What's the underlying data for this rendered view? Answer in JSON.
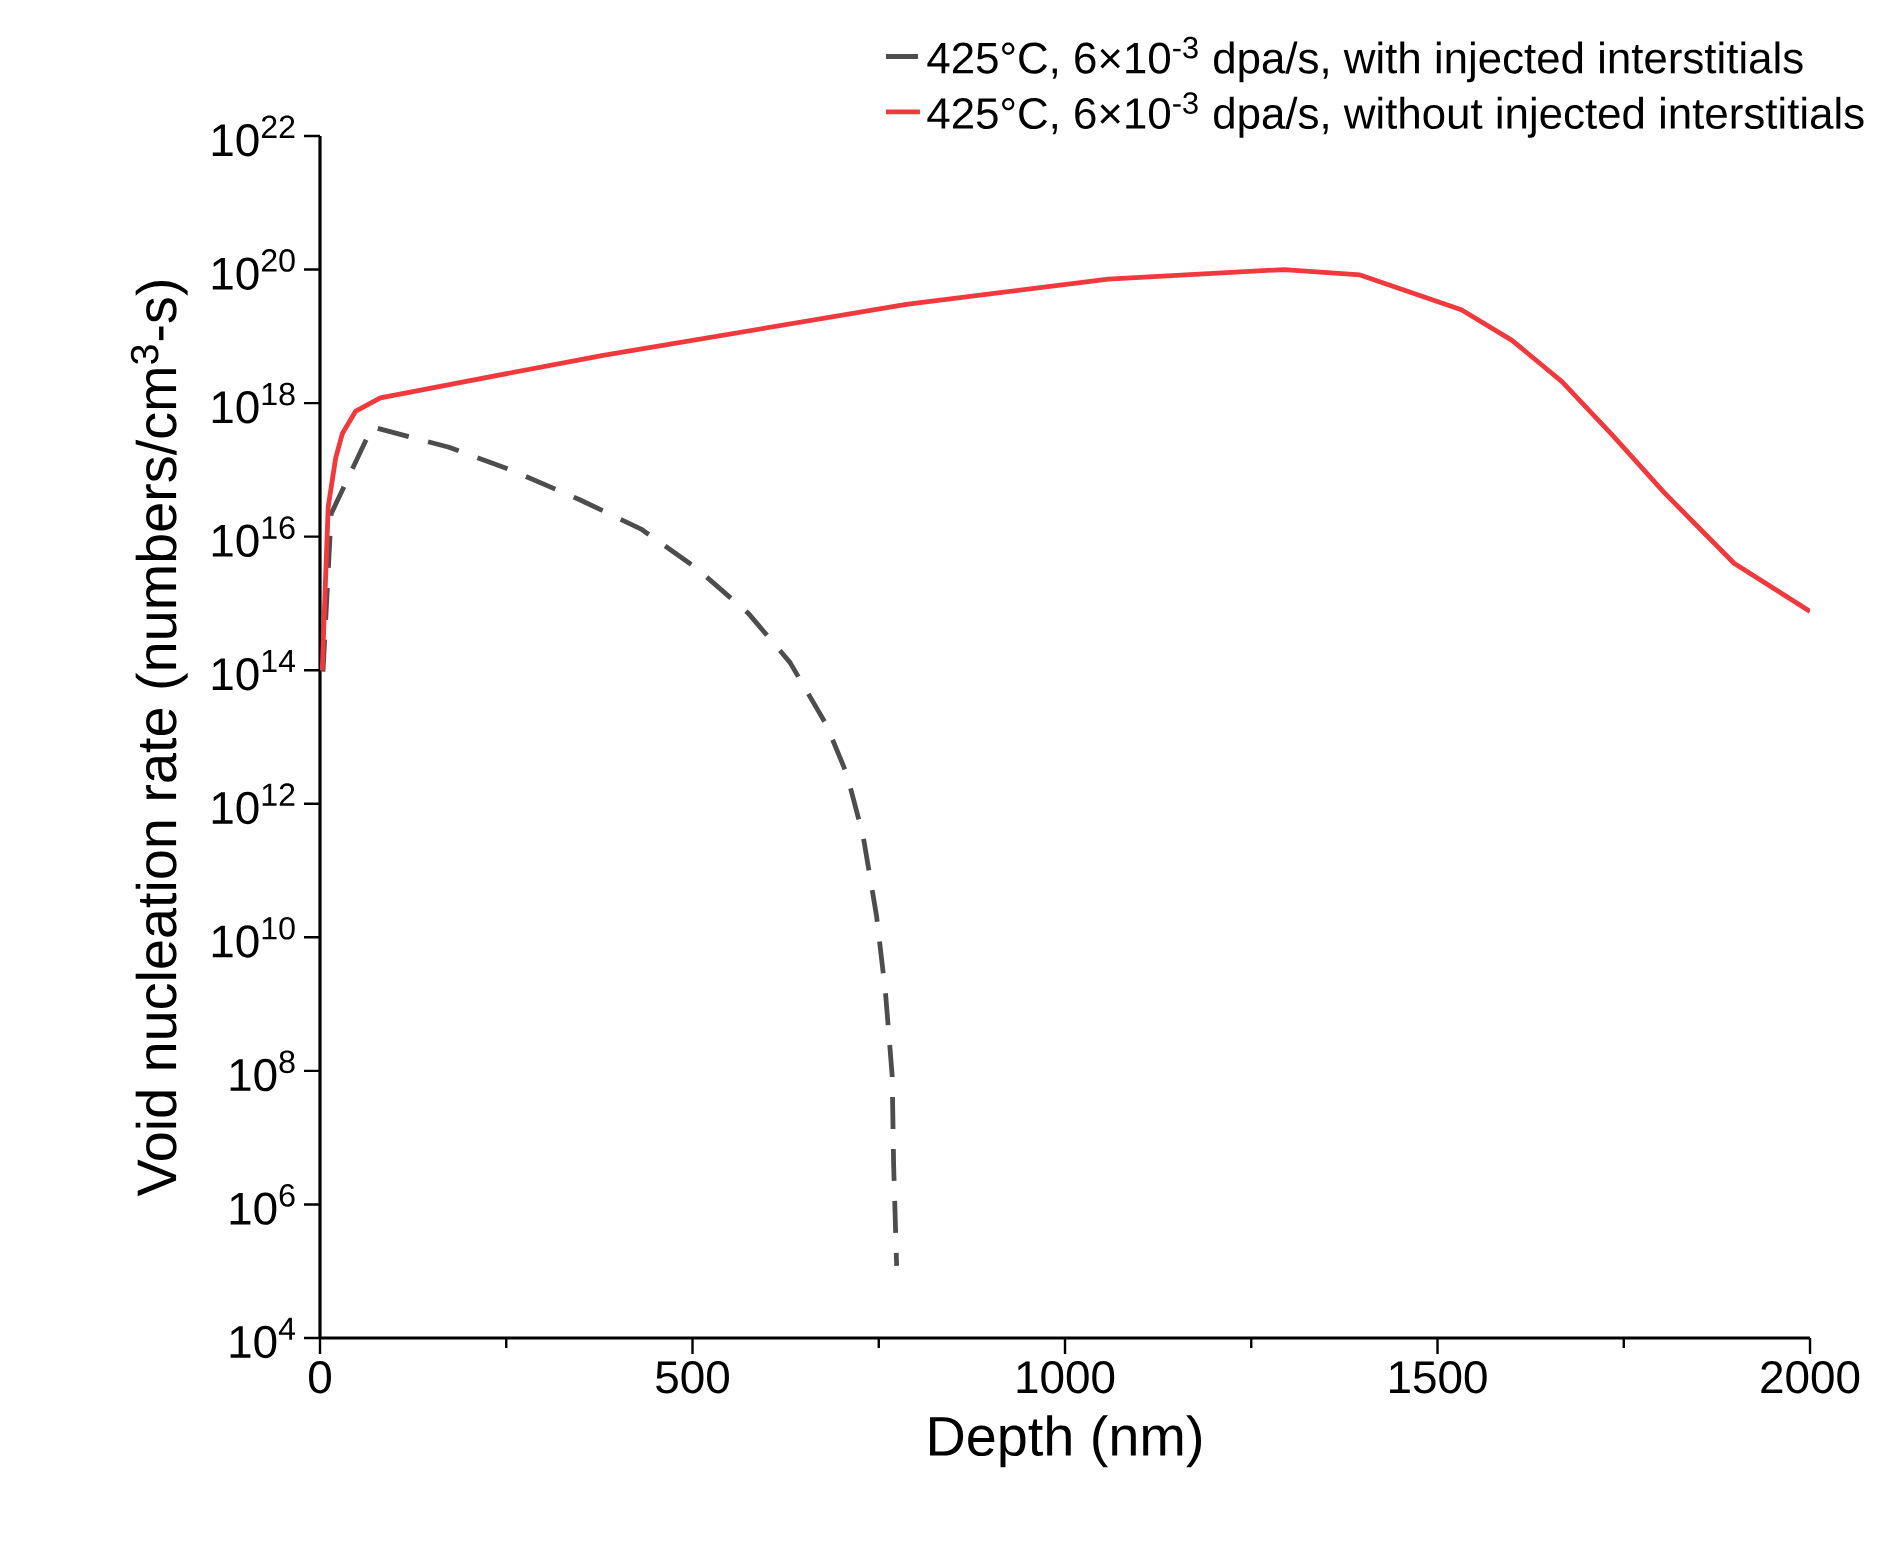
{
  "chart_data": {
    "type": "line",
    "xlabel": "Depth (nm)",
    "ylabel": "Void nucleation rate (numbers/cm$^{3}$-s)",
    "log": "y",
    "xlim": [
      0,
      2000
    ],
    "xticks": [
      0,
      {
        "value": 250,
        "label": null
      },
      500,
      {
        "value": 750,
        "label": null
      },
      1000,
      {
        "value": 1250,
        "label": null
      },
      1500,
      {
        "value": 1750,
        "label": null
      },
      2000
    ],
    "ylim": [
      10000.0,
      1e+22
    ],
    "yticks": [
      {
        "value": 10000.0,
        "label": "10$^{4}$"
      },
      {
        "value": 1000000.0,
        "label": "10$^{6}$"
      },
      {
        "value": 100000000.0,
        "label": "10$^{8}$"
      },
      {
        "value": 10000000000.0,
        "label": "10$^{10}$"
      },
      {
        "value": 1000000000000.0,
        "label": "10$^{12}$"
      },
      {
        "value": 100000000000000.0,
        "label": "10$^{14}$"
      },
      {
        "value": 1e+16,
        "label": "10$^{16}$"
      },
      {
        "value": 1e+18,
        "label": "10$^{18}$"
      },
      {
        "value": 1e+20,
        "label": "10$^{20}$"
      },
      {
        "value": 1e+22,
        "label": "10$^{22}$"
      }
    ],
    "legend": "top right",
    "grid": false,
    "series": [
      {
        "name": "425°C, 6×10$^{-3}$ dpa/s, with injected interstitials",
        "color": "#4d4d4d",
        "line_style": "dashed",
        "x": [
          4,
          15,
          70,
          172,
          256,
          348,
          431,
          505,
          575,
          631,
          680,
          707,
          729,
          747,
          759,
          768,
          770,
          774
        ],
        "values": [
          95000000000000.0,
          2.2e+16,
          4.4e+17,
          2.2e+17,
          1e+17,
          3.6e+16,
          1.3e+16,
          3400000000000000.0,
          710000000000000.0,
          130000000000000.0,
          15000000000000.0,
          2800000000000.0,
          330000000000.0,
          21000000000.0,
          1500000000.0,
          85000000.0,
          3800000.0,
          120000.0
        ]
      },
      {
        "name": "425°C, 6×10$^{-3}$ dpa/s, without injected interstitials",
        "color": "#f0393c",
        "line_style": "solid",
        "x": [
          3,
          11,
          21,
          30,
          48,
          81,
          380,
          787,
          1058,
          1294,
          1396,
          1532,
          1600,
          1667,
          1736,
          1804,
          1898,
          2000
        ],
        "values": [
          100000000000000.0,
          2.8e+16,
          1.5e+17,
          3.5e+17,
          7.6e+17,
          1.2e+18,
          5.2e+18,
          3e+19,
          7.2e+19,
          1e+20,
          8.3e+19,
          2.5e+19,
          8.7e+18,
          2.1e+18,
          3.2e+17,
          4.6e+16,
          4000000000000000.0,
          760000000000000.0
        ]
      }
    ]
  }
}
